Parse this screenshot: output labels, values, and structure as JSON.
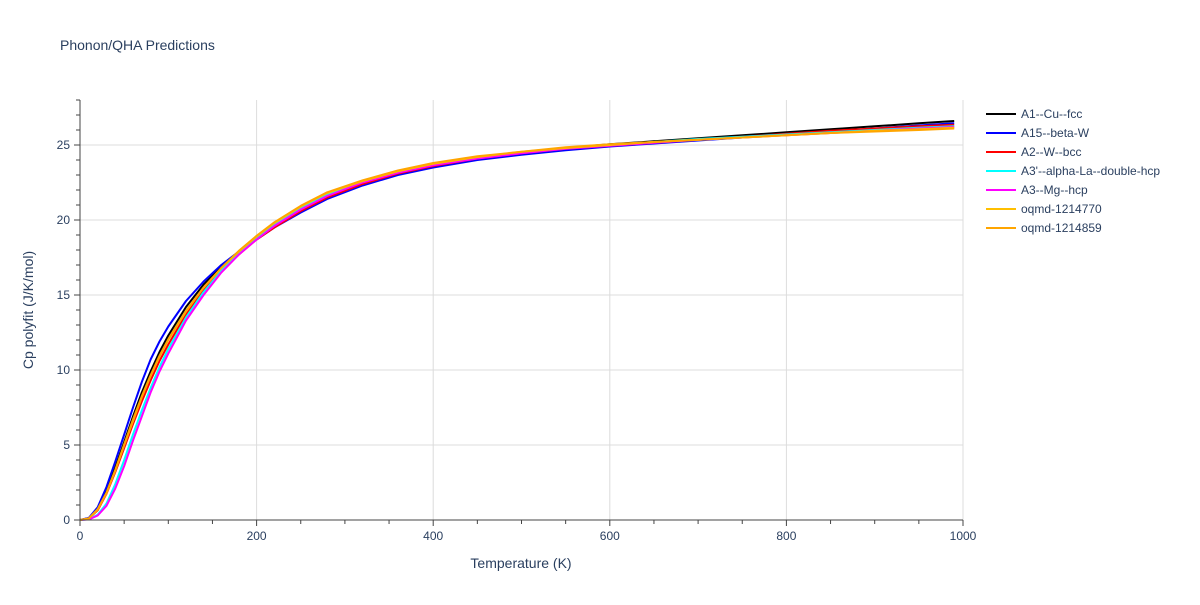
{
  "chart_data": {
    "type": "line",
    "title": "Phonon/QHA Predictions",
    "xlabel": "Temperature (K)",
    "ylabel": "Cp polyfit (J/K/mol)",
    "xlim": [
      0,
      1000
    ],
    "ylim": [
      0,
      28
    ],
    "xticks": [
      0,
      200,
      400,
      600,
      800,
      1000
    ],
    "yticks": [
      0,
      5,
      10,
      15,
      20,
      25
    ],
    "grid": true,
    "legend_position": "top-right outside",
    "x": [
      0,
      10,
      20,
      30,
      40,
      50,
      60,
      70,
      80,
      90,
      100,
      120,
      140,
      160,
      180,
      200,
      220,
      250,
      280,
      320,
      360,
      400,
      450,
      500,
      550,
      600,
      650,
      700,
      750,
      800,
      850,
      900,
      950,
      990
    ],
    "series": [
      {
        "name": "A1--Cu--fcc",
        "color": "#000000",
        "values": [
          0,
          0.12,
          0.75,
          1.9,
          3.5,
          5.2,
          6.9,
          8.5,
          9.9,
          11.2,
          12.3,
          14.2,
          15.7,
          16.9,
          17.9,
          18.8,
          19.6,
          20.6,
          21.5,
          22.4,
          23.1,
          23.6,
          24.1,
          24.5,
          24.8,
          25.05,
          25.25,
          25.45,
          25.65,
          25.85,
          26.05,
          26.25,
          26.45,
          26.6
        ]
      },
      {
        "name": "A15--beta-W",
        "color": "#0000ff",
        "values": [
          0,
          0.14,
          0.85,
          2.2,
          3.9,
          5.7,
          7.5,
          9.2,
          10.7,
          11.9,
          12.9,
          14.6,
          15.9,
          17.0,
          17.9,
          18.7,
          19.5,
          20.5,
          21.4,
          22.3,
          23.0,
          23.5,
          24.0,
          24.35,
          24.65,
          24.9,
          25.1,
          25.3,
          25.5,
          25.7,
          25.9,
          26.1,
          26.3,
          26.45
        ]
      },
      {
        "name": "A2--W--bcc",
        "color": "#ff0000",
        "values": [
          0,
          0.1,
          0.65,
          1.75,
          3.2,
          4.8,
          6.4,
          7.9,
          9.3,
          10.6,
          11.7,
          13.7,
          15.3,
          16.6,
          17.7,
          18.7,
          19.5,
          20.6,
          21.5,
          22.4,
          23.1,
          23.6,
          24.1,
          24.45,
          24.75,
          24.95,
          25.15,
          25.35,
          25.55,
          25.75,
          25.95,
          26.1,
          26.25,
          26.35
        ]
      },
      {
        "name": "A3'--alpha-La--double-hcp",
        "color": "#00ffff",
        "values": [
          0,
          0.05,
          0.35,
          1.1,
          2.4,
          4.0,
          5.7,
          7.3,
          8.8,
          10.2,
          11.4,
          13.5,
          15.2,
          16.6,
          17.8,
          18.8,
          19.7,
          20.8,
          21.7,
          22.6,
          23.2,
          23.7,
          24.15,
          24.5,
          24.8,
          25.0,
          25.2,
          25.4,
          25.55,
          25.7,
          25.85,
          26.0,
          26.15,
          26.25
        ]
      },
      {
        "name": "A3--Mg--hcp",
        "color": "#ff00ff",
        "values": [
          0,
          0.04,
          0.3,
          0.95,
          2.1,
          3.6,
          5.3,
          6.9,
          8.5,
          9.9,
          11.1,
          13.3,
          15.0,
          16.5,
          17.7,
          18.7,
          19.6,
          20.7,
          21.6,
          22.5,
          23.15,
          23.65,
          24.1,
          24.45,
          24.75,
          24.95,
          25.15,
          25.35,
          25.5,
          25.65,
          25.8,
          25.95,
          26.1,
          26.2
        ]
      },
      {
        "name": "oqmd-1214770",
        "color": "#ffbf00",
        "values": [
          0,
          0.1,
          0.7,
          1.8,
          3.3,
          5.0,
          6.6,
          8.2,
          9.6,
          10.9,
          12.0,
          13.9,
          15.5,
          16.8,
          17.9,
          18.9,
          19.8,
          20.9,
          21.8,
          22.6,
          23.25,
          23.75,
          24.2,
          24.55,
          24.8,
          25.0,
          25.2,
          25.35,
          25.5,
          25.65,
          25.8,
          25.95,
          26.05,
          26.15
        ]
      },
      {
        "name": "oqmd-1214859",
        "color": "#ffa500",
        "values": [
          0,
          0.1,
          0.72,
          1.82,
          3.35,
          5.05,
          6.7,
          8.25,
          9.65,
          10.95,
          12.05,
          13.95,
          15.5,
          16.8,
          17.95,
          18.95,
          19.85,
          20.95,
          21.85,
          22.65,
          23.3,
          23.8,
          24.25,
          24.55,
          24.85,
          25.05,
          25.2,
          25.35,
          25.5,
          25.65,
          25.8,
          25.9,
          26.0,
          26.1
        ]
      }
    ]
  }
}
